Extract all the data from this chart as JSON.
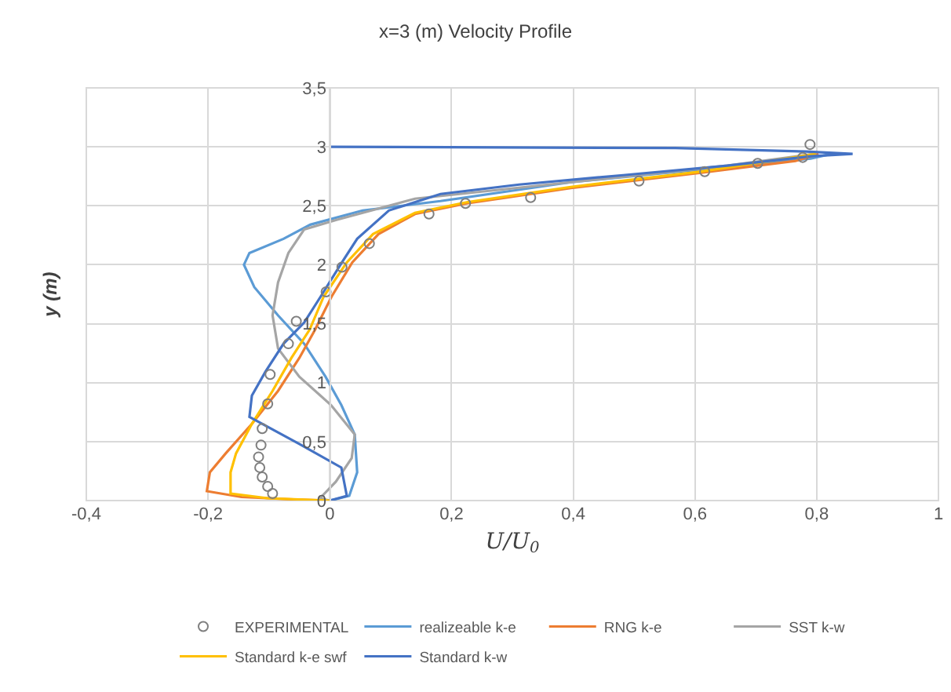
{
  "chart_data": {
    "type": "line",
    "title": "x=3 (m) Velocity Profile",
    "xlabel": "U/U$_{0}$",
    "ylabel": "y (m)",
    "xlim": [
      -0.4,
      1
    ],
    "ylim": [
      0,
      3.5
    ],
    "xticks": [
      {
        "value": -0.4,
        "label": "-0,4"
      },
      {
        "value": -0.2,
        "label": "-0,2"
      },
      0,
      {
        "value": 0.2,
        "label": "0,2"
      },
      {
        "value": 0.4,
        "label": "0,4"
      },
      {
        "value": 0.6,
        "label": "0,6"
      },
      {
        "value": 0.8,
        "label": "0,8"
      },
      1
    ],
    "yticks": [
      0,
      {
        "value": 0.5,
        "label": "0,5"
      },
      1,
      {
        "value": 1.5,
        "label": "1,5"
      },
      2,
      {
        "value": 2.5,
        "label": "2,5"
      },
      3,
      {
        "value": 3.5,
        "label": "3,5"
      }
    ],
    "grid": true,
    "legend": "bottom",
    "series": [
      {
        "name": "EXPERIMENTAL",
        "type": "scatter",
        "marker": "circle",
        "color": "#7f7f7f",
        "x": [
          0.789,
          0.777,
          0.703,
          0.616,
          0.508,
          0.33,
          0.223,
          0.163,
          0.065,
          0.02,
          -0.006,
          -0.055,
          -0.068,
          -0.098,
          -0.102,
          -0.111,
          -0.113,
          -0.117,
          -0.115,
          -0.111,
          -0.102,
          -0.094
        ],
        "values": [
          3.02,
          2.91,
          2.86,
          2.79,
          2.71,
          2.57,
          2.52,
          2.43,
          2.18,
          1.98,
          1.77,
          1.52,
          1.33,
          1.07,
          0.82,
          0.61,
          0.47,
          0.37,
          0.28,
          0.2,
          0.12,
          0.06
        ]
      },
      {
        "name": "realizeable k-e",
        "type": "line",
        "color": "#5b9bd5",
        "x": [
          0.824,
          0.79,
          0.653,
          0.396,
          0.182,
          0.054,
          -0.032,
          -0.076,
          -0.132,
          -0.141,
          -0.124,
          -0.085,
          -0.042,
          -0.007,
          0.019,
          0.041,
          0.045,
          0.032,
          0
        ],
        "values": [
          2.94,
          2.9,
          2.83,
          2.7,
          2.54,
          2.46,
          2.34,
          2.22,
          2.1,
          2.0,
          1.81,
          1.57,
          1.33,
          1.05,
          0.81,
          0.56,
          0.24,
          0.04,
          0
        ]
      },
      {
        "name": "RNG k-e",
        "type": "line",
        "color": "#ed7d31",
        "x": [
          0.803,
          0.765,
          0.61,
          0.396,
          0.225,
          0.14,
          0.08,
          0.037,
          0.003,
          -0.024,
          -0.05,
          -0.085,
          -0.128,
          -0.171,
          -0.197,
          -0.202,
          -0.145,
          -0.059,
          0
        ],
        "values": [
          2.94,
          2.88,
          2.78,
          2.65,
          2.52,
          2.43,
          2.26,
          2.02,
          1.73,
          1.45,
          1.21,
          0.93,
          0.65,
          0.4,
          0.24,
          0.08,
          0.03,
          0.01,
          0
        ]
      },
      {
        "name": "SST k-w",
        "type": "line",
        "color": "#a5a5a5",
        "x": [
          0.795,
          0.653,
          0.396,
          0.14,
          0.011,
          -0.042,
          -0.068,
          -0.085,
          -0.094,
          -0.085,
          -0.05,
          0.002,
          0.041,
          0.036,
          0.01,
          -0.016,
          0
        ],
        "values": [
          2.94,
          2.84,
          2.7,
          2.56,
          2.38,
          2.3,
          2.1,
          1.85,
          1.57,
          1.29,
          1.05,
          0.81,
          0.56,
          0.36,
          0.16,
          0.02,
          0
        ]
      },
      {
        "name": "Standard k-e swf",
        "type": "line",
        "color": "#ffc000",
        "x": [
          0.799,
          0.61,
          0.396,
          0.225,
          0.14,
          0.071,
          0.028,
          -0.01,
          -0.033,
          -0.063,
          -0.094,
          -0.128,
          -0.154,
          -0.163,
          -0.163,
          -0.102,
          0
        ],
        "values": [
          2.94,
          2.79,
          2.66,
          2.53,
          2.44,
          2.26,
          2.02,
          1.73,
          1.45,
          1.21,
          0.93,
          0.65,
          0.4,
          0.24,
          0.06,
          0.02,
          0
        ]
      },
      {
        "name": "Standard k-w",
        "type": "line",
        "color": "#4472c4",
        "x": [
          0,
          0.568,
          0.782,
          0.859,
          0.79,
          0.653,
          0.482,
          0.311,
          0.182,
          0.097,
          0.045,
          0.02,
          -0.015,
          -0.042,
          -0.076,
          -0.106,
          -0.128,
          -0.132,
          -0.05,
          0.019,
          0.028,
          0
        ],
        "values": [
          3.0,
          2.99,
          2.96,
          2.94,
          2.92,
          2.84,
          2.76,
          2.68,
          2.6,
          2.46,
          2.22,
          2.02,
          1.73,
          1.51,
          1.33,
          1.09,
          0.89,
          0.71,
          0.48,
          0.28,
          0.04,
          0
        ]
      }
    ]
  }
}
